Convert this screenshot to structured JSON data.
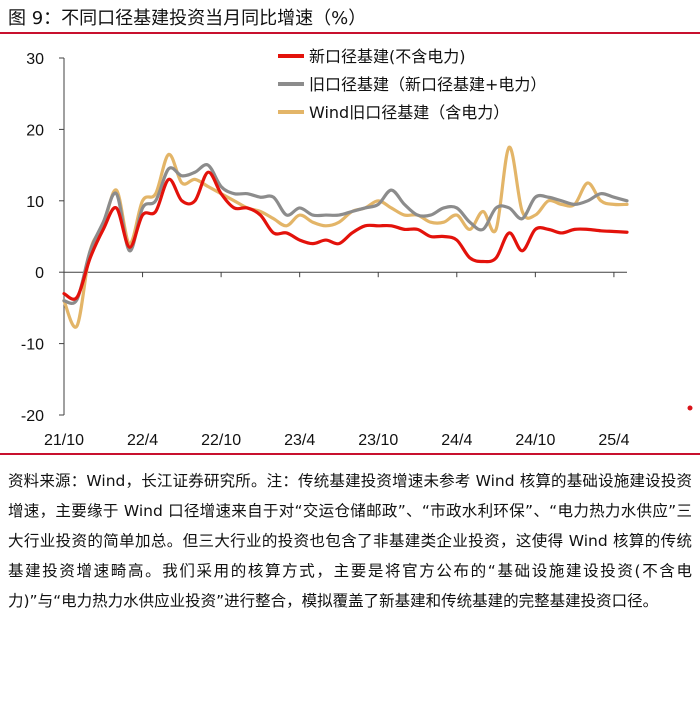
{
  "figure": {
    "title": "图 9：不同口径基建投资当月同比增速（%）",
    "note": "资料来源：Wind，长江证券研究所。注：传统基建投资增速未参考 Wind 核算的基础设施建设投资增速，主要缘于 Wind 口径增速来自于对“交运仓储邮政”、“市政水利环保”、“电力热力水供应”三大行业投资的简单加总。但三大行业的投资也包含了非基建类企业投资，这使得 Wind 核算的传统基建投资增速畸高。我们采用的核算方式，主要是将官方公布的“基础设施建设投资(不含电力)”与“电力热力水供应业投资”进行整合，模拟覆盖了新基建和传统基建的完整基建投资口径。"
  },
  "chart_data": {
    "type": "line",
    "title": "不同口径基建投资当月同比增速（%）",
    "xlabel": "",
    "ylabel": "",
    "ylim": [
      -20,
      30
    ],
    "yticks": [
      -20,
      -10,
      0,
      10,
      20,
      30
    ],
    "ytick_labels": [
      "-20",
      "-10",
      "0",
      "10",
      "20",
      "30"
    ],
    "x_tick_labels": [
      "21/10",
      "22/4",
      "22/10",
      "23/4",
      "23/10",
      "24/4",
      "24/10",
      "25/4"
    ],
    "x_tick_positions": [
      0,
      6,
      12,
      18,
      24,
      30,
      36,
      42
    ],
    "x_count": 44,
    "legend_position": "top-right",
    "series": [
      {
        "name": "新口径基建(不含电力)",
        "color": "#e3120b",
        "values": [
          -3,
          -3.5,
          2,
          6,
          9,
          3.5,
          8,
          8.5,
          13,
          10,
          10,
          14,
          11,
          9,
          9,
          8,
          5.5,
          5.5,
          4.5,
          4,
          4.5,
          4,
          5.5,
          6.5,
          6.5,
          6.5,
          6,
          6,
          5,
          5,
          4.5,
          2,
          1.5,
          2,
          5.5,
          3,
          6,
          6,
          5.5,
          6,
          6,
          5.8,
          5.7,
          5.6
        ]
      },
      {
        "name": "旧口径基建（新口径基建+电力）",
        "color": "#8c8c8c",
        "values": [
          -4,
          -3.8,
          3,
          7,
          11,
          3,
          9,
          10,
          14.5,
          13.5,
          14,
          15,
          12,
          11,
          11,
          10.5,
          10.5,
          8,
          9,
          8,
          8,
          8,
          8.5,
          9,
          9.5,
          11.5,
          9.5,
          8,
          8,
          9,
          9,
          7,
          6,
          9,
          9,
          7.5,
          10.5,
          10.5,
          10,
          9.5,
          10,
          11,
          10.5,
          10
        ]
      },
      {
        "name": "Wind旧口径基建（含电力）",
        "color": "#e3b568",
        "values": [
          -4,
          -7.5,
          3,
          6.5,
          11.5,
          4,
          10,
          11,
          16.5,
          12.5,
          13,
          12,
          11,
          10,
          9,
          8.5,
          7.5,
          6.5,
          8,
          7,
          6.5,
          7,
          8.5,
          9,
          10,
          9,
          8,
          8,
          7,
          7,
          8,
          6,
          8.5,
          6,
          17.5,
          8.5,
          8,
          10,
          9.5,
          9.5,
          12.5,
          10,
          9.5,
          9.5
        ]
      }
    ]
  },
  "colors": {
    "accent_rule": "#c8102e",
    "axis": "#404040"
  },
  "dots": {
    "red_dot_color": "#d9141a"
  }
}
